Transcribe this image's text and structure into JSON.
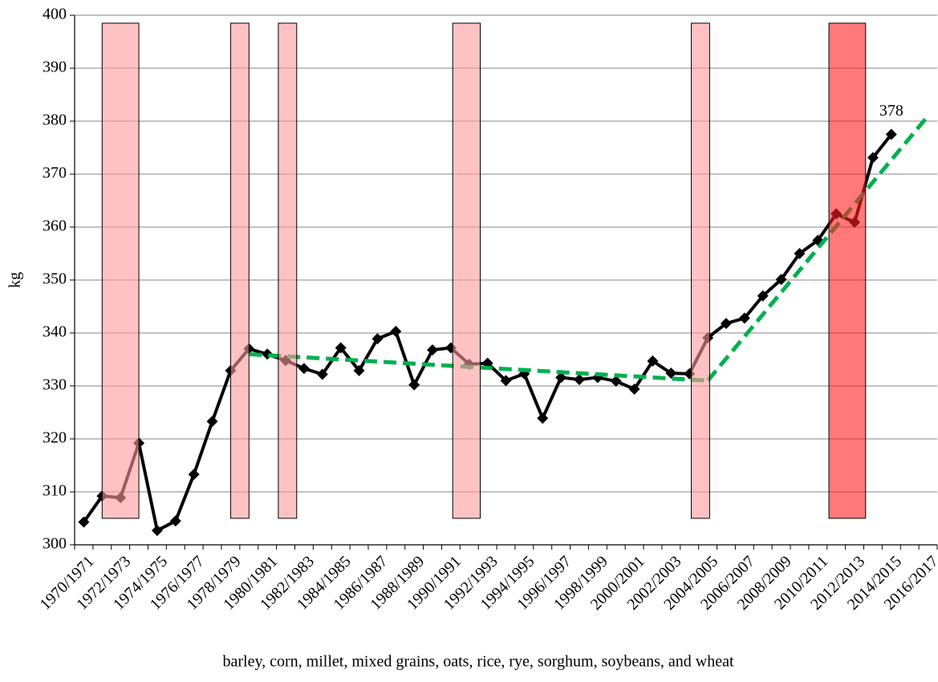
{
  "chart_data": {
    "type": "line",
    "y_label": "kg",
    "x_label": "barley, corn, millet, mixed grains, oats, rice, rye, sorghum, soybeans, and wheat",
    "categories": [
      "1970/1971",
      null,
      "1972/1973",
      null,
      "1974/1975",
      null,
      "1976/1977",
      null,
      "1978/1979",
      null,
      "1980/1981",
      null,
      "1982/1983",
      null,
      "1984/1985",
      null,
      "1986/1987",
      null,
      "1988/1989",
      null,
      "1990/1991",
      null,
      "1992/1993",
      null,
      "1994/1995",
      null,
      "1996/1997",
      null,
      "1998/1999",
      null,
      "2000/2001",
      null,
      "2002/2003",
      null,
      "2004/2005",
      null,
      "2006/2007",
      null,
      "2008/2009",
      null,
      "2010/2011",
      null,
      "2012/2013",
      null,
      "2014/2015",
      null,
      "2016/2017"
    ],
    "series": [
      {
        "color": "#000000",
        "values": [
          304.3,
          309.2,
          308.9,
          319.2,
          302.7,
          304.5,
          313.3,
          323.3,
          332.9,
          337.0,
          336.0,
          334.8,
          333.3,
          332.2,
          337.2,
          332.9,
          338.9,
          340.3,
          330.2,
          336.8,
          337.2,
          334.1,
          334.3,
          331.0,
          332.3,
          323.9,
          331.6,
          331.2,
          331.6,
          330.9,
          329.4,
          334.7,
          332.4,
          332.3,
          339.1,
          341.8,
          342.8,
          347.0,
          350.1,
          355.0,
          357.5,
          362.5,
          360.9,
          373.1,
          377.5,
          null,
          null
        ],
        "value_labels": [
          null,
          null,
          null,
          null,
          null,
          null,
          null,
          null,
          null,
          null,
          null,
          null,
          null,
          null,
          null,
          null,
          null,
          null,
          null,
          null,
          null,
          null,
          null,
          null,
          null,
          null,
          null,
          null,
          null,
          null,
          null,
          null,
          null,
          null,
          null,
          null,
          null,
          null,
          null,
          null,
          null,
          null,
          null,
          null,
          "378",
          null,
          null
        ]
      }
    ],
    "trend_lines": [
      {
        "color": "#00b050",
        "x": [
          9,
          34
        ],
        "values": [
          336,
          331
        ]
      },
      {
        "color": "#00b050",
        "x": [
          34,
          46
        ],
        "values": [
          331,
          381
        ]
      }
    ],
    "highlight_bands": [
      {
        "x": [
          1,
          3
        ],
        "y": [
          305,
          398.5
        ],
        "color": "#ff9999"
      },
      {
        "x": [
          8,
          9
        ],
        "y": [
          305,
          398.5
        ],
        "color": "#ff9999"
      },
      {
        "x": [
          10.6,
          11.6
        ],
        "y": [
          305,
          398.5
        ],
        "color": "#ff9999"
      },
      {
        "x": [
          20.1,
          21.6
        ],
        "y": [
          305,
          398.5
        ],
        "color": "#ff9999"
      },
      {
        "x": [
          33.1,
          34.1
        ],
        "y": [
          305,
          398.5
        ],
        "color": "#ff9999"
      },
      {
        "x": [
          40.6,
          42.6
        ],
        "y": [
          305,
          398.5
        ],
        "color": "#ff2020"
      }
    ],
    "ylim": [
      300,
      400
    ],
    "yticks": [
      300,
      310,
      320,
      330,
      340,
      350,
      360,
      370,
      380,
      390,
      400
    ],
    "grid": true
  }
}
